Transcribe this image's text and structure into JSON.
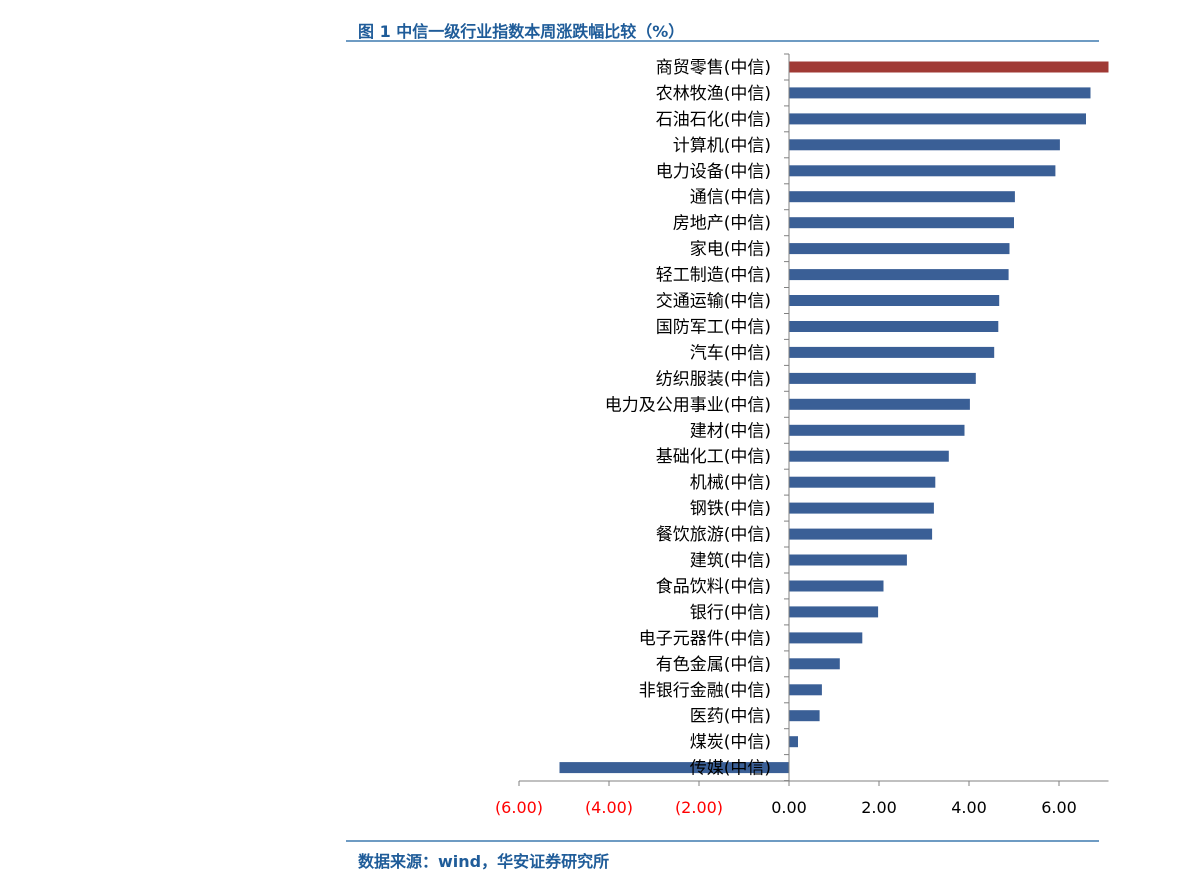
{
  "title": "图 1 中信一级行业指数本周涨跌幅比较（%）",
  "source": "数据来源：wind，华安证券研究所",
  "colors": {
    "bar": "#3A5F96",
    "highlight": "#A03A35",
    "negative_tick": "#FF0000",
    "tick": "#000000",
    "axis": "#808080",
    "header": "#1F5C99"
  },
  "chart_data": {
    "type": "bar",
    "orientation": "horizontal",
    "categories": [
      "商贸零售(中信)",
      "农林牧渔(中信)",
      "石油石化(中信)",
      "计算机(中信)",
      "电力设备(中信)",
      "通信(中信)",
      "房地产(中信)",
      "家电(中信)",
      "轻工制造(中信)",
      "交通运输(中信)",
      "国防军工(中信)",
      "汽车(中信)",
      "纺织服装(中信)",
      "电力及公用事业(中信)",
      "建材(中信)",
      "基础化工(中信)",
      "机械(中信)",
      "钢铁(中信)",
      "餐饮旅游(中信)",
      "建筑(中信)",
      "食品饮料(中信)",
      "银行(中信)",
      "电子元器件(中信)",
      "有色金属(中信)",
      "非银行金融(中信)",
      "医药(中信)",
      "煤炭(中信)",
      "传媒(中信)"
    ],
    "values": [
      7.1,
      6.7,
      6.6,
      6.02,
      5.92,
      5.02,
      5.0,
      4.9,
      4.88,
      4.67,
      4.65,
      4.56,
      4.15,
      4.02,
      3.9,
      3.55,
      3.25,
      3.22,
      3.18,
      2.62,
      2.1,
      1.98,
      1.63,
      1.13,
      0.73,
      0.68,
      0.2,
      -5.1
    ],
    "highlight_index": 0,
    "xlim": [
      -6,
      7.1
    ],
    "x_ticks": [
      -6,
      -4,
      -2,
      0,
      2,
      4,
      6
    ],
    "x_tick_labels": [
      "(6.00)",
      "(4.00)",
      "(2.00)",
      "0.00",
      "2.00",
      "4.00",
      "6.00"
    ],
    "title": "",
    "xlabel": "",
    "ylabel": "",
    "grid": false,
    "legend": "none"
  }
}
